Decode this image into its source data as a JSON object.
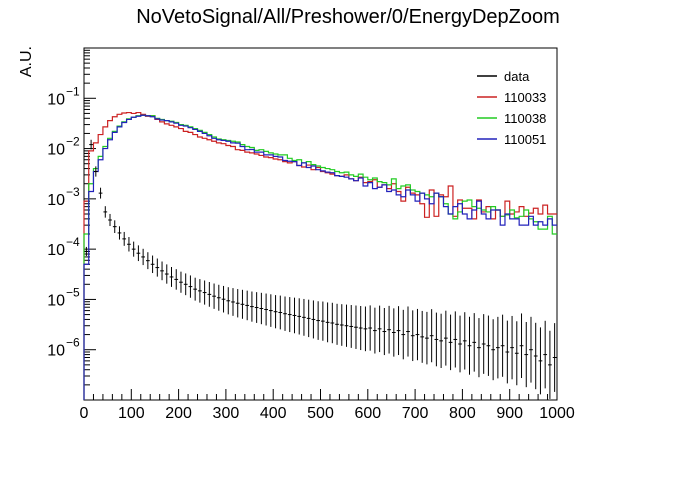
{
  "chart_data": {
    "type": "histogram",
    "title": "NoVetoSignal/All/Preshower/0/EnergyDepZoom",
    "xlabel": "",
    "ylabel": "A.U.",
    "xlim": [
      0,
      1000
    ],
    "ylim": [
      1e-07,
      1
    ],
    "yscale": "log",
    "x_ticks": [
      "0",
      "100",
      "200",
      "300",
      "400",
      "500",
      "600",
      "700",
      "800",
      "900",
      "1000"
    ],
    "y_ticks": [
      {
        "value": 1e-06,
        "mantissa": "10",
        "exp": "−6"
      },
      {
        "value": 1e-05,
        "mantissa": "10",
        "exp": "−5"
      },
      {
        "value": 0.0001,
        "mantissa": "10",
        "exp": "−4"
      },
      {
        "value": 0.001,
        "mantissa": "10",
        "exp": "−3"
      },
      {
        "value": 0.01,
        "mantissa": "10",
        "exp": "−2"
      },
      {
        "value": 0.1,
        "mantissa": "10",
        "exp": "−1"
      }
    ],
    "bin_width": 10,
    "grid": false,
    "legend_position": "top-right",
    "series": [
      {
        "name": "data",
        "color": "#000000",
        "style": "errorbar",
        "values": [
          9e-05,
          0.012,
          0.0035,
          0.0013,
          0.00055,
          0.00038,
          0.00028,
          0.00021,
          0.00016,
          0.000125,
          0.0001,
          8.3e-05,
          7e-05,
          5.9e-05,
          5e-05,
          4.3e-05,
          3.7e-05,
          3.2e-05,
          2.8e-05,
          2.5e-05,
          2.2e-05,
          2e-05,
          1.8e-05,
          1.6e-05,
          1.48e-05,
          1.37e-05,
          1.26e-05,
          1.16e-05,
          1.08e-05,
          1.01e-05,
          9.4e-06,
          8.9e-06,
          8.4e-06,
          8e-06,
          7.6e-06,
          7.2e-06,
          6.9e-06,
          6.6e-06,
          6.3e-06,
          6e-06,
          5.7e-06,
          5.5e-06,
          5.2e-06,
          5e-06,
          4.8e-06,
          4.6e-06,
          4.4e-06,
          4.2e-06,
          4e-06,
          3.8e-06,
          3.7e-06,
          3.5e-06,
          3.4e-06,
          3.2e-06,
          3.1e-06,
          3e-06,
          2.9e-06,
          2.8e-06,
          2.7e-06,
          2.6e-06,
          2.7e-06,
          2.4e-06,
          2.6e-06,
          2.3e-06,
          2.5e-06,
          2.2e-06,
          2.4e-06,
          2e-06,
          2.3e-06,
          1.9e-06,
          2e-06,
          1.8e-06,
          1.7e-06,
          1.9e-06,
          1.6e-06,
          1.5e-06,
          1.7e-06,
          1.4e-06,
          1.6e-06,
          1.3e-06,
          1.5e-06,
          1.2e-06,
          1.4e-06,
          1.1e-06,
          1.3e-06,
          1.2e-06,
          1e-06,
          1.1e-06,
          1.2e-06,
          9e-07,
          1.1e-06,
          8.5e-07,
          1.2e-06,
          8e-07,
          1e-06,
          7.5e-07,
          6e-07,
          8e-07,
          5e-07,
          7e-07
        ]
      },
      {
        "name": "110033",
        "color": "#cc2222",
        "style": "step",
        "values": [
          0.0009,
          0.009,
          0.013,
          0.019,
          0.027,
          0.036,
          0.043,
          0.048,
          0.051,
          0.052,
          0.05,
          0.052,
          0.048,
          0.044,
          0.045,
          0.038,
          0.034,
          0.031,
          0.029,
          0.027,
          0.025,
          0.022,
          0.021,
          0.019,
          0.017,
          0.016,
          0.015,
          0.014,
          0.013,
          0.0125,
          0.0115,
          0.011,
          0.0095,
          0.0092,
          0.0085,
          0.0082,
          0.0078,
          0.0073,
          0.0068,
          0.0066,
          0.0062,
          0.006,
          0.0055,
          0.0052,
          0.0055,
          0.0046,
          0.0043,
          0.0047,
          0.0038,
          0.0042,
          0.0035,
          0.0033,
          0.0031,
          0.0029,
          0.0028,
          0.003,
          0.0025,
          0.0023,
          0.0027,
          0.0021,
          0.0022,
          0.0024,
          0.0017,
          0.0019,
          0.0016,
          0.002,
          0.0014,
          0.0009,
          0.0017,
          0.0013,
          0.0012,
          0.0008,
          0.00043,
          0.0015,
          0.00045,
          0.0012,
          0.0011,
          0.0018,
          0.00045,
          0.00095,
          0.00065,
          0.00065,
          0.0004,
          0.00095,
          0.00055,
          0.0007,
          0.0004,
          0.0006,
          0.00045,
          0.0009,
          0.0005,
          0.00055,
          0.0007,
          0.00045,
          0.00052,
          0.00065,
          0.0005,
          0.00075,
          0.0005,
          0.0005
        ]
      },
      {
        "name": "110038",
        "color": "#22cc22",
        "style": "step",
        "values": [
          0.0002,
          0.002,
          0.004,
          0.007,
          0.011,
          0.016,
          0.022,
          0.028,
          0.034,
          0.039,
          0.042,
          0.045,
          0.046,
          0.045,
          0.045,
          0.04,
          0.038,
          0.036,
          0.035,
          0.033,
          0.03,
          0.029,
          0.027,
          0.025,
          0.023,
          0.021,
          0.019,
          0.017,
          0.0155,
          0.015,
          0.0145,
          0.014,
          0.0135,
          0.012,
          0.011,
          0.0105,
          0.0092,
          0.0095,
          0.0088,
          0.0082,
          0.0078,
          0.0075,
          0.0075,
          0.0064,
          0.0058,
          0.006,
          0.0052,
          0.0055,
          0.0048,
          0.0045,
          0.0042,
          0.004,
          0.0038,
          0.0035,
          0.0033,
          0.0034,
          0.003,
          0.0028,
          0.0031,
          0.0027,
          0.0024,
          0.0026,
          0.0022,
          0.0021,
          0.0019,
          0.0025,
          0.0016,
          0.0018,
          0.0019,
          0.0015,
          0.0014,
          0.0013,
          0.0012,
          0.0011,
          0.0013,
          0.0011,
          0.0008,
          0.0005,
          0.0004,
          0.00055,
          0.0009,
          0.00095,
          0.0007,
          0.00065,
          0.0006,
          0.00055,
          0.0007,
          0.0006,
          0.00045,
          0.00048,
          0.0006,
          0.00042,
          0.00045,
          0.0006,
          0.0004,
          0.00035,
          0.00025,
          0.00025,
          0.00045,
          0.0002
        ]
      },
      {
        "name": "110051",
        "color": "#2222bb",
        "style": "step",
        "values": [
          5e-05,
          0.0014,
          0.0035,
          0.006,
          0.01,
          0.015,
          0.021,
          0.027,
          0.033,
          0.038,
          0.042,
          0.044,
          0.046,
          0.045,
          0.043,
          0.039,
          0.037,
          0.036,
          0.034,
          0.032,
          0.029,
          0.028,
          0.026,
          0.024,
          0.022,
          0.02,
          0.018,
          0.016,
          0.015,
          0.0145,
          0.014,
          0.013,
          0.0128,
          0.011,
          0.0095,
          0.0096,
          0.0085,
          0.0085,
          0.0075,
          0.0075,
          0.007,
          0.0068,
          0.0058,
          0.0056,
          0.0055,
          0.0046,
          0.0052,
          0.0042,
          0.0045,
          0.0038,
          0.0036,
          0.0034,
          0.0033,
          0.0029,
          0.0028,
          0.0027,
          0.0025,
          0.0023,
          0.0026,
          0.0018,
          0.0021,
          0.0016,
          0.0017,
          0.0019,
          0.0014,
          0.0015,
          0.0012,
          0.0011,
          0.0015,
          0.0012,
          0.0009,
          0.0013,
          0.001,
          0.0008,
          0.0013,
          0.0011,
          0.0007,
          0.0005,
          0.0007,
          0.0008,
          0.0005,
          0.0004,
          0.0006,
          0.0009,
          0.0005,
          0.0004,
          0.0006,
          0.0006,
          0.0003,
          0.0005,
          0.0004,
          0.0004,
          0.0003,
          0.0003,
          0.00045,
          0.0003,
          0.00035,
          0.0003,
          0.0004,
          0.0003
        ]
      }
    ]
  }
}
